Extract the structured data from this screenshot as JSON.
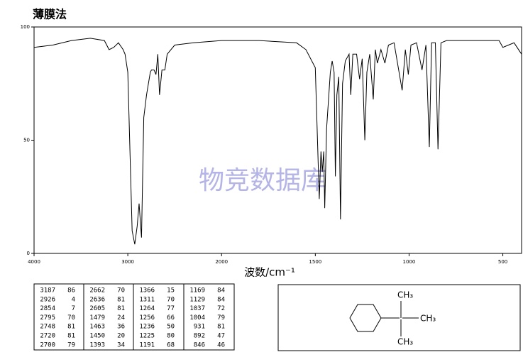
{
  "chart_data": {
    "type": "line",
    "title": "薄膜法",
    "xlabel": "波数/cm⁻¹",
    "watermark": "物竞数据库",
    "color": "#000000",
    "xlim": [
      4000,
      400
    ],
    "xticks": [
      4000,
      3000,
      2000,
      1500,
      1000,
      500
    ],
    "ylim": [
      0,
      100
    ],
    "yticks": [
      0,
      50,
      100
    ],
    "x": [
      4000,
      3800,
      3600,
      3400,
      3250,
      3200,
      3150,
      3100,
      3050,
      3030,
      3000,
      2954,
      2926,
      2900,
      2880,
      2854,
      2830,
      2800,
      2760,
      2748,
      2720,
      2700,
      2680,
      2662,
      2636,
      2605,
      2580,
      2500,
      2300,
      2000,
      1800,
      1600,
      1550,
      1500,
      1479,
      1470,
      1463,
      1455,
      1450,
      1440,
      1420,
      1410,
      1400,
      1393,
      1385,
      1375,
      1366,
      1355,
      1340,
      1320,
      1311,
      1300,
      1280,
      1264,
      1250,
      1236,
      1225,
      1210,
      1191,
      1180,
      1169,
      1150,
      1129,
      1110,
      1080,
      1037,
      1020,
      1004,
      990,
      960,
      931,
      910,
      892,
      880,
      860,
      846,
      830,
      800,
      700,
      600,
      520,
      500,
      470,
      440,
      400
    ],
    "values": [
      91,
      92,
      94,
      95,
      94,
      90,
      91,
      93,
      90,
      88,
      80,
      10,
      4,
      12,
      22,
      7,
      60,
      70,
      80,
      81,
      81,
      79,
      88,
      70,
      81,
      81,
      88,
      92,
      93,
      94,
      94,
      93,
      90,
      82,
      24,
      45,
      36,
      45,
      20,
      55,
      80,
      85,
      80,
      34,
      70,
      78,
      15,
      75,
      85,
      88,
      70,
      88,
      88,
      77,
      86,
      50,
      80,
      88,
      68,
      90,
      84,
      90,
      84,
      92,
      93,
      72,
      90,
      79,
      92,
      93,
      81,
      92,
      47,
      93,
      93,
      46,
      93,
      94,
      94,
      94,
      94,
      91,
      92,
      93,
      88
    ]
  },
  "peaks": [
    [
      3187,
      86
    ],
    [
      2926,
      4
    ],
    [
      2854,
      7
    ],
    [
      2795,
      70
    ],
    [
      2748,
      81
    ],
    [
      2720,
      81
    ],
    [
      2700,
      79
    ],
    [
      2662,
      70
    ],
    [
      2636,
      81
    ],
    [
      2605,
      81
    ],
    [
      1479,
      24
    ],
    [
      1463,
      36
    ],
    [
      1450,
      20
    ],
    [
      1393,
      34
    ],
    [
      1366,
      15
    ],
    [
      1311,
      70
    ],
    [
      1264,
      77
    ],
    [
      1256,
      66
    ],
    [
      1236,
      50
    ],
    [
      1225,
      80
    ],
    [
      1191,
      68
    ],
    [
      1169,
      84
    ],
    [
      1129,
      84
    ],
    [
      1037,
      72
    ],
    [
      1004,
      79
    ],
    [
      931,
      81
    ],
    [
      892,
      47
    ],
    [
      846,
      46
    ]
  ],
  "structure": {
    "labels": [
      "CH₃",
      "CH₃",
      "CH₃"
    ]
  }
}
